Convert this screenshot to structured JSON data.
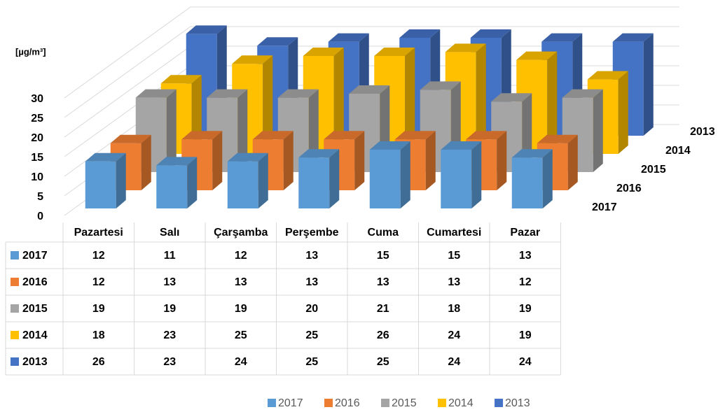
{
  "chart_data": {
    "type": "bar3d",
    "y_label": "[µg/m³]",
    "categories": [
      "Pazartesi",
      "Salı",
      "Çarşamba",
      "Perşembe",
      "Cuma",
      "Cumartesi",
      "Pazar"
    ],
    "series": [
      {
        "name": "2017",
        "color": "#5b9bd5",
        "values": [
          12,
          11,
          12,
          13,
          15,
          15,
          13
        ]
      },
      {
        "name": "2016",
        "color": "#ed7d31",
        "values": [
          12,
          13,
          13,
          13,
          13,
          13,
          12
        ]
      },
      {
        "name": "2015",
        "color": "#a5a5a5",
        "values": [
          19,
          19,
          19,
          20,
          21,
          18,
          19
        ]
      },
      {
        "name": "2014",
        "color": "#ffc000",
        "values": [
          18,
          23,
          25,
          25,
          26,
          24,
          19
        ]
      },
      {
        "name": "2013",
        "color": "#4472c4",
        "values": [
          26,
          23,
          24,
          25,
          25,
          24,
          24
        ]
      }
    ],
    "ylim": [
      0,
      30
    ],
    "yticks": [
      0,
      5,
      10,
      15,
      20,
      25,
      30
    ],
    "grid": true,
    "legend": "bottom"
  }
}
